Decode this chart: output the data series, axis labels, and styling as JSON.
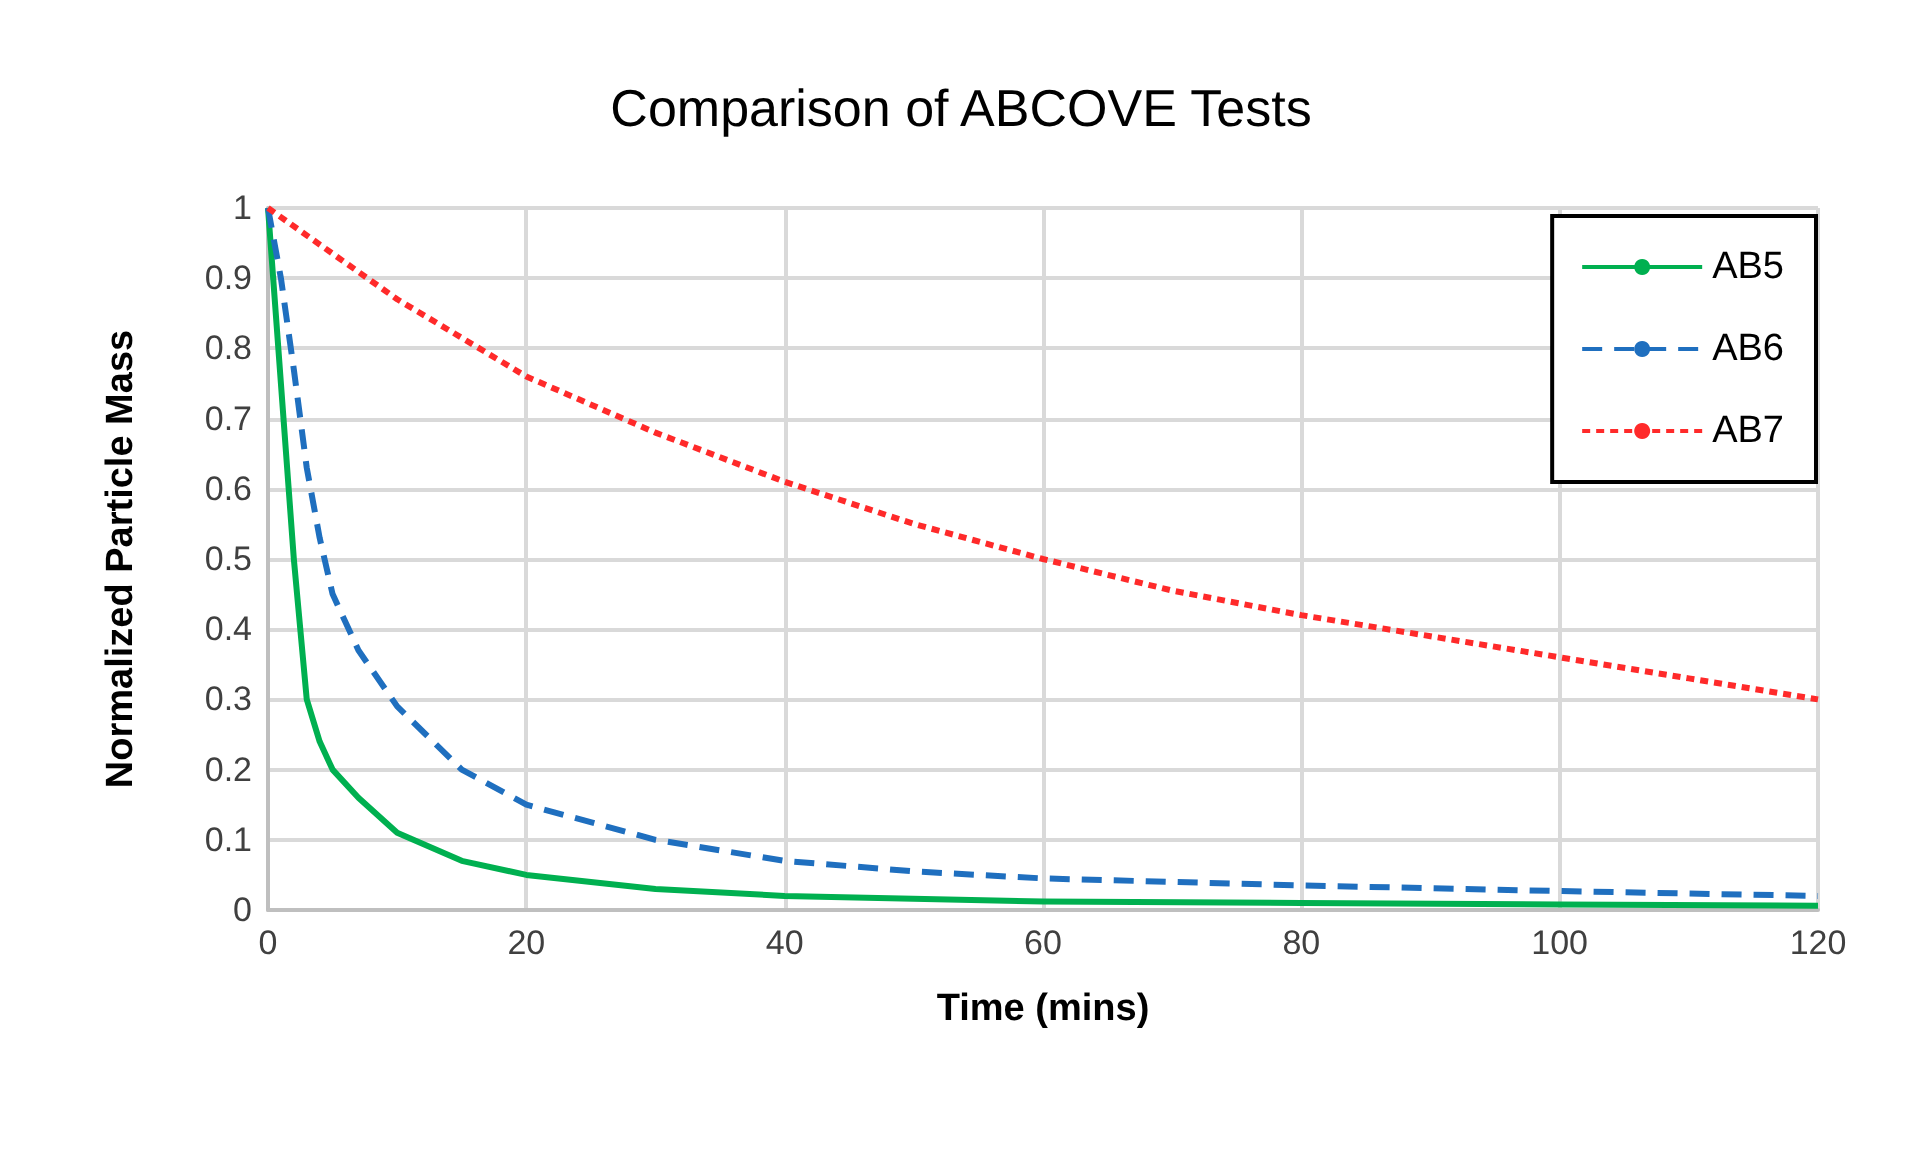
{
  "chart_data": {
    "type": "line",
    "title": "Comparison of ABCOVE Tests",
    "xlabel": "Time (mins)",
    "ylabel": "Normalized Particle Mass",
    "xlim": [
      0,
      120
    ],
    "xticks": [
      0,
      20,
      40,
      60,
      80,
      100,
      120
    ],
    "ylim": [
      0,
      1
    ],
    "yticks": [
      0,
      0.1,
      0.2,
      0.3,
      0.4,
      0.5,
      0.6,
      0.7,
      0.8,
      0.9,
      1
    ],
    "grid": true,
    "legend": "top right",
    "marker": "none",
    "series": [
      {
        "name": "AB5",
        "color": "#00b050",
        "line_style": "solid",
        "x": [
          0,
          1,
          2,
          3,
          4,
          5,
          7,
          10,
          15,
          20,
          30,
          40,
          60,
          80,
          100,
          120
        ],
        "values": [
          1,
          0.75,
          0.5,
          0.3,
          0.24,
          0.2,
          0.16,
          0.11,
          0.07,
          0.05,
          0.03,
          0.02,
          0.012,
          0.01,
          0.008,
          0.006
        ]
      },
      {
        "name": "AB6",
        "color": "#1f6fbf",
        "line_style": "dashed",
        "x": [
          0,
          1,
          2,
          3,
          4,
          5,
          7,
          10,
          15,
          20,
          30,
          40,
          50,
          60,
          80,
          100,
          120
        ],
        "values": [
          1,
          0.9,
          0.77,
          0.63,
          0.53,
          0.45,
          0.37,
          0.29,
          0.2,
          0.15,
          0.1,
          0.07,
          0.055,
          0.045,
          0.035,
          0.027,
          0.02
        ]
      },
      {
        "name": "AB7",
        "color": "#ff2a2a",
        "line_style": "dotted",
        "x": [
          0,
          10,
          20,
          30,
          40,
          50,
          60,
          70,
          80,
          90,
          100,
          110,
          120
        ],
        "values": [
          1,
          0.87,
          0.76,
          0.68,
          0.61,
          0.55,
          0.5,
          0.455,
          0.42,
          0.39,
          0.36,
          0.33,
          0.3
        ]
      }
    ]
  }
}
